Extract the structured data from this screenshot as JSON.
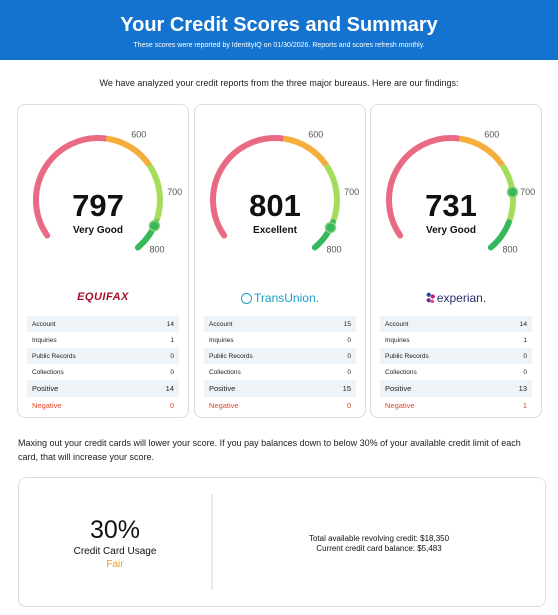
{
  "header": {
    "title": "Your Credit Scores and Summary",
    "subtitle": "These scores were reported by IdentityIQ on 01/30/2026. Reports and scores refresh monthly."
  },
  "intro": "We have analyzed your credit reports from the three major bureaus. Here are our findings:",
  "gauge_ticks": [
    "600",
    "700",
    "800"
  ],
  "colors": {
    "arc_red": "#e96a83",
    "arc_orange": "#f5ad3b",
    "arc_lightgreen": "#a5dd5a",
    "arc_green": "#37b95b",
    "header_blue": "#1473cf",
    "negative_red": "#e2462b",
    "fair_orange": "#f39a1d"
  },
  "stat_labels": {
    "account": "Account",
    "inquiries": "Inquiries",
    "public_records": "Public Records",
    "collections": "Collections",
    "positive": "Positive",
    "negative": "Negative"
  },
  "bureaus": [
    {
      "name": "EQUIFAX",
      "logo": "equifax-logo",
      "score": "797",
      "score_value": 797,
      "rating": "Very Good",
      "account": "14",
      "inquiries": "1",
      "public_records": "0",
      "collections": "0",
      "positive": "14",
      "negative": "0"
    },
    {
      "name": "TransUnion.",
      "logo": "transunion-logo",
      "score": "801",
      "score_value": 801,
      "rating": "Excellent",
      "account": "15",
      "inquiries": "0",
      "public_records": "0",
      "collections": "0",
      "positive": "15",
      "negative": "0"
    },
    {
      "name": "experian.",
      "logo": "experian-logo",
      "score": "731",
      "score_value": 731,
      "rating": "Very Good",
      "account": "14",
      "inquiries": "1",
      "public_records": "0",
      "collections": "0",
      "positive": "13",
      "negative": "1"
    }
  ],
  "advice": "Maxing out your credit cards will lower your score. If you pay balances down to below 30% of your available credit limit of each card, that will increase your score.",
  "usage": {
    "percent": "30%",
    "label": "Credit Card Usage",
    "rating": "Fair",
    "total_available": "Total available revolving credit: $18,350",
    "current_balance": "Current credit card balance: $5,483"
  }
}
